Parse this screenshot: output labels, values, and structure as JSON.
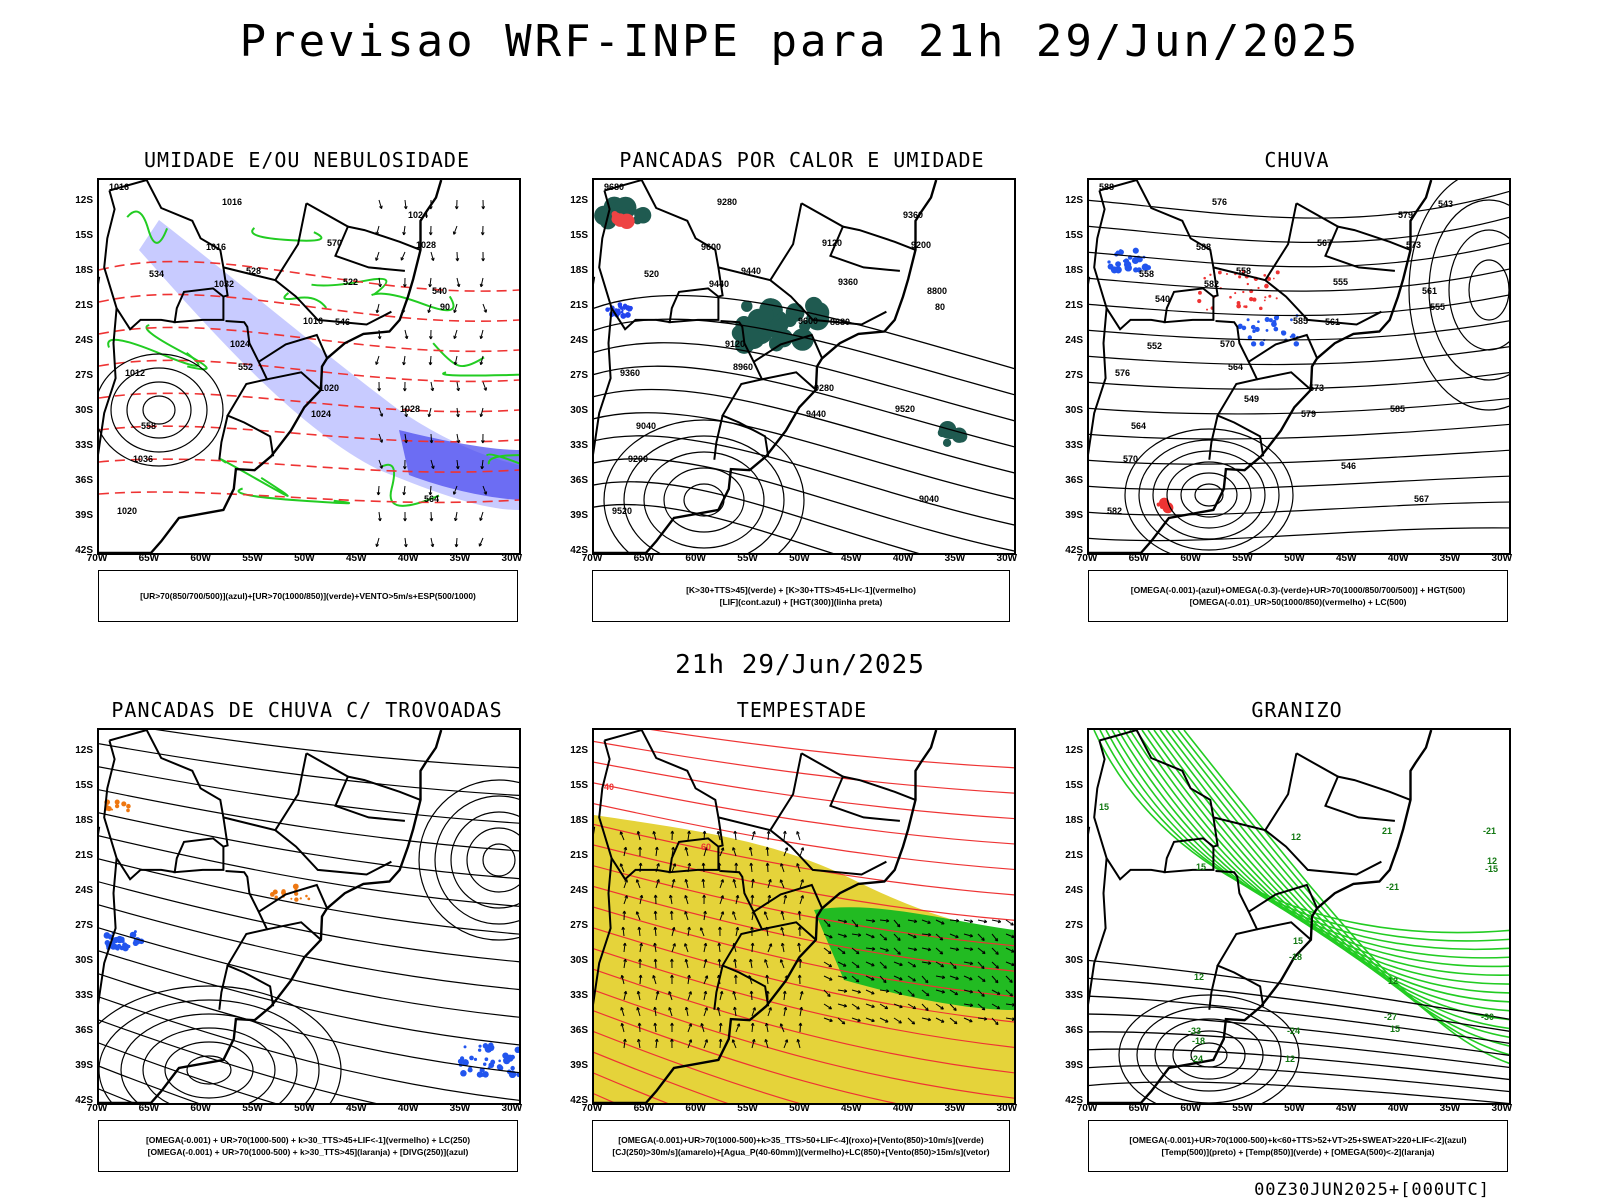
{
  "main_title": "Previsao WRF-INPE  para 21h 29/Jun/2025",
  "mid_title": "21h 29/Jun/2025",
  "footer": "00Z30JUN2025+[000UTC]",
  "lat_labels": [
    "12S",
    "15S",
    "18S",
    "21S",
    "24S",
    "27S",
    "30S",
    "33S",
    "36S",
    "39S",
    "42S"
  ],
  "lon_labels": [
    "70W",
    "65W",
    "60W",
    "55W",
    "50W",
    "45W",
    "40W",
    "35W",
    "30W"
  ],
  "panels": [
    {
      "title": "UMIDADE E/OU NEBULOSIDADE",
      "legend": [
        "[UR>70(850/700/500)](azul)+[UR>70(1000/850)](verde)+VENTO>5m/s+ESP(500/1000)"
      ],
      "colors": {
        "humidity_upper": "#9aa0ff",
        "humidity_low": "#22cc22",
        "thickness": "#ee3333"
      },
      "labels": [
        "1016",
        "1016",
        "1016",
        "1028",
        "1020",
        "1032",
        "1024",
        "1024",
        "1012",
        "1016",
        "1020",
        "1028",
        "1036",
        "1024",
        "570",
        "564",
        "558",
        "552",
        "546",
        "540",
        "534",
        "528",
        "522",
        "90"
      ]
    },
    {
      "title": "PANCADAS POR CALOR E UMIDADE",
      "legend": [
        "[K>30+TTS>45](verde) + [K>30+TTS>45+LI<-1](vermelho)",
        "[LIF](cont.azul) + [HGT(300)](linha preta)"
      ],
      "colors": {
        "k_tts": "#1f5a50",
        "k_tts_li": "#ee4444",
        "lif": "#2244ee"
      },
      "labels": [
        "9680",
        "9600",
        "9600",
        "9520",
        "9520",
        "9440",
        "9440",
        "9360",
        "9360",
        "9280",
        "9280",
        "9200",
        "9200",
        "9120",
        "9120",
        "9040",
        "9040",
        "8960",
        "8880",
        "8800",
        "520",
        "9440",
        "9360",
        "80"
      ]
    },
    {
      "title": "CHUVA",
      "legend": [
        "[OMEGA(-0.001)-(azul)+OMEGA(-0.3)-(verde)+UR>70(1000/850/700/500)] + HGT(500)",
        "[OMEGA(-0.01)_UR>50(1000/850)(vermelho) + LC(500)"
      ],
      "colors": {
        "omega_blue": "#2255ee",
        "omega_red": "#ee3333"
      },
      "labels": [
        "588",
        "588",
        "585",
        "585",
        "582",
        "582",
        "579",
        "579",
        "576",
        "576",
        "573",
        "573",
        "570",
        "570",
        "567",
        "567",
        "564",
        "564",
        "561",
        "561",
        "558",
        "558",
        "555",
        "555",
        "552",
        "549",
        "546",
        "543",
        "540"
      ]
    },
    {
      "title": "PANCADAS DE CHUVA C/ TROVOADAS",
      "legend": [
        "[OMEGA(-0.001) + UR>70(1000-500) + k>30_TTS>45+LIF<-1](vermelho) + LC(250)",
        "[OMEGA(-0.001) + UR>70(1000-500) + k>30_TTS>45](laranja) + [DIVG(250)](azul)"
      ],
      "colors": {
        "orange": "#ee7711",
        "blue": "#2255ee"
      },
      "labels": []
    },
    {
      "title": "TEMPESTADE",
      "legend": [
        "[OMEGA(-0.001)+UR>70(1000-500)+k>35_TTS>50+LIF<-4](roxo)+[Vento(850)>10m/s](verde)",
        "[CJ(250)>30m/s](amarelo)+[Agua_P(40-60mm)](vermelho)+LC(850)+[Vento(850)>15m/s](vetor)"
      ],
      "colors": {
        "jet": "#e5d33a",
        "wind": "#22bb22",
        "streamline": "#ee3333"
      },
      "labels": [
        "40",
        "60"
      ]
    },
    {
      "title": "GRANIZO",
      "legend": [
        "[OMEGA(-0.001)+UR>70(1000-500)+k<60+TTS>52+VT>25+SWEAT>220+LIF<-2](azul)",
        "[Temp(500)](preto) + [Temp(850)](verde) + [OMEGA(500)<-2](laranja)"
      ],
      "colors": {
        "t850": "#22cc22",
        "t500": "#000000"
      },
      "labels": [
        "15",
        "15",
        "15",
        "15",
        "12",
        "12",
        "12",
        "12",
        "-15",
        "-18",
        "-18",
        "-21",
        "-21",
        "-24",
        "-24",
        "-27",
        "-30",
        "-33",
        "12",
        "21"
      ]
    }
  ]
}
